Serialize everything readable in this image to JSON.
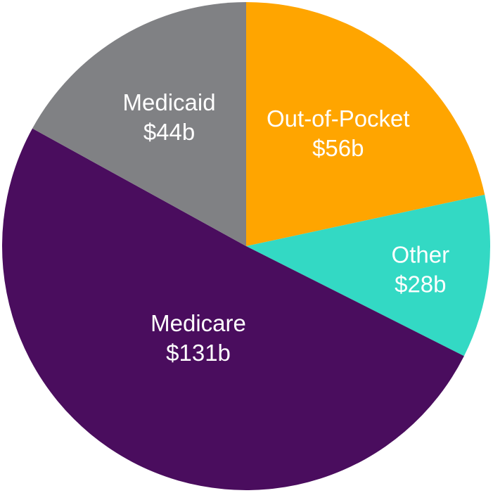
{
  "chart_data": {
    "type": "pie",
    "title": "",
    "slices": [
      {
        "name": "Out-of-Pocket",
        "value_label": "$56b",
        "value": 56,
        "color": "#FFA500"
      },
      {
        "name": "Other",
        "value_label": "$28b",
        "value": 28,
        "color": "#33D9C4"
      },
      {
        "name": "Medicare",
        "value_label": "$131b",
        "value": 131,
        "color": "#4A0D5E"
      },
      {
        "name": "Medicaid",
        "value_label": "$44b",
        "value": 44,
        "color": "#808184"
      }
    ],
    "start_angle": "12 o'clock",
    "direction": "clockwise",
    "legend": "none",
    "labels": "inside slices"
  }
}
